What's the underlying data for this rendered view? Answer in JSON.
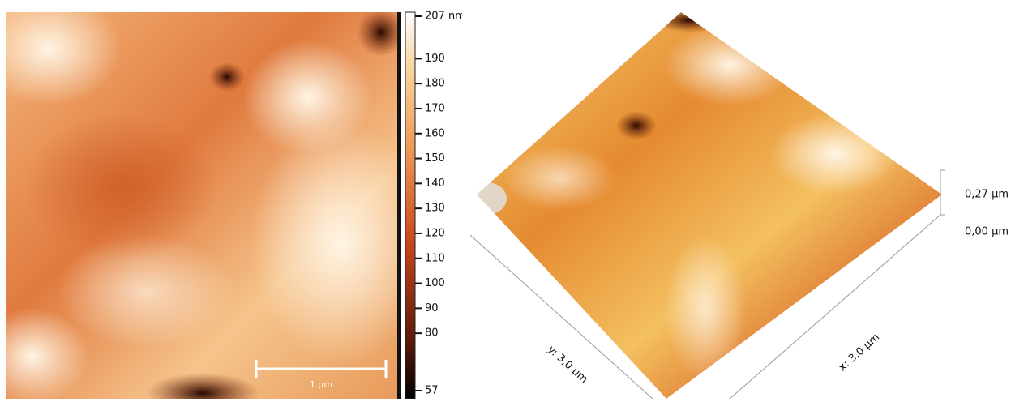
{
  "colorbar": {
    "range": [
      57,
      207
    ],
    "ticks": [
      57,
      80,
      90,
      100,
      110,
      120,
      130,
      140,
      150,
      160,
      170,
      180,
      190,
      {
        "value": 207,
        "label": "207 nm"
      }
    ]
  },
  "scale_bar": "1 µm",
  "view_3d": {
    "y_axis": "y: 3,0 µm",
    "x_axis": "x: 3,0 µm",
    "z_top": "0,27 µm",
    "z_bottom": "0,00 µm"
  }
}
